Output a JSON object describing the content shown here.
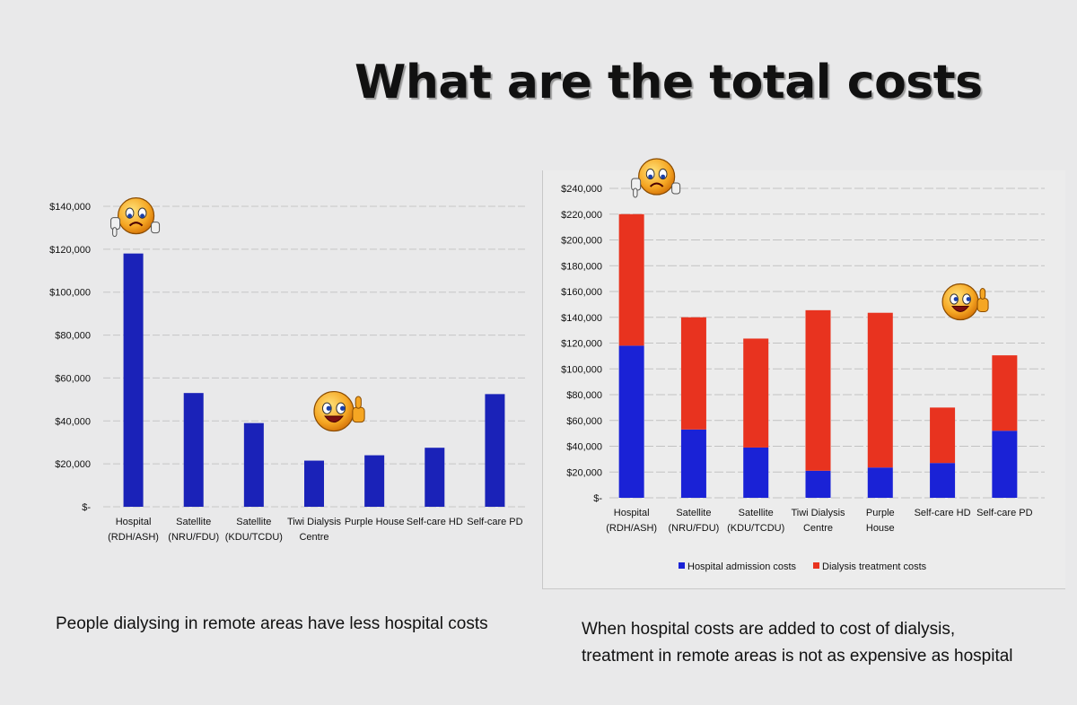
{
  "slide": {
    "title": "What are the total costs",
    "left_caption": "People dialysing in remote areas have less hospital costs",
    "right_caption_line1": "When hospital costs are added to cost of dialysis,",
    "right_caption_line2": "treatment in remote areas is not as expensive as hospital"
  },
  "chart_data": [
    {
      "type": "bar",
      "title": "",
      "categories": [
        [
          "Hospital",
          "(RDH/ASH)"
        ],
        [
          "Satellite",
          "(NRU/FDU)"
        ],
        [
          "Satellite",
          "(KDU/TCDU)"
        ],
        [
          "Tiwi Dialysis",
          "Centre"
        ],
        [
          "Purple  House"
        ],
        [
          "Self-care HD"
        ],
        [
          "Self-care PD"
        ]
      ],
      "values": [
        118000,
        53000,
        39000,
        21500,
        24000,
        27500,
        52500
      ],
      "ylim": [
        0,
        140000
      ],
      "yticks": [
        0,
        20000,
        40000,
        60000,
        80000,
        100000,
        120000,
        140000
      ],
      "ytick_labels": [
        "$-",
        "$20,000",
        "$40,000",
        "$60,000",
        "$80,000",
        "$100,000",
        "$120,000",
        "$140,000"
      ],
      "colors": [
        "#1a22b8"
      ],
      "grid": true
    },
    {
      "type": "bar",
      "stacked": true,
      "title": "",
      "categories": [
        [
          "Hospital",
          "(RDH/ASH)"
        ],
        [
          "Satellite",
          "(NRU/FDU)"
        ],
        [
          "Satellite",
          "(KDU/TCDU)"
        ],
        [
          "Tiwi Dialysis",
          "Centre"
        ],
        [
          "Purple",
          "House"
        ],
        [
          "Self-care HD"
        ],
        [
          "Self-care PD"
        ]
      ],
      "series": [
        {
          "name": "Hospital admission costs",
          "color": "#1a22d6",
          "values": [
            118000,
            53000,
            39000,
            21000,
            23500,
            27000,
            52000
          ]
        },
        {
          "name": "Dialysis treatment costs",
          "color": "#e8331f",
          "values": [
            102000,
            87000,
            84500,
            124500,
            120000,
            43000,
            58500
          ]
        }
      ],
      "ylim": [
        0,
        240000
      ],
      "yticks": [
        0,
        20000,
        40000,
        60000,
        80000,
        100000,
        120000,
        140000,
        160000,
        180000,
        200000,
        220000,
        240000
      ],
      "ytick_labels": [
        "$-",
        "$20,000",
        "$40,000",
        "$60,000",
        "$80,000",
        "$100,000",
        "$120,000",
        "$140,000",
        "$160,000",
        "$180,000",
        "$200,000",
        "$220,000",
        "$240,000"
      ],
      "legend": "bottom",
      "grid": true
    }
  ],
  "emojis": [
    {
      "name": "worried-thumbs-down",
      "chart": 0,
      "category": 0
    },
    {
      "name": "happy-thumbs-up",
      "chart": 0,
      "category": 3
    },
    {
      "name": "worried-thumbs-down",
      "chart": 1,
      "category": 0
    },
    {
      "name": "happy-thumbs-up",
      "chart": 1,
      "category": 6
    }
  ]
}
